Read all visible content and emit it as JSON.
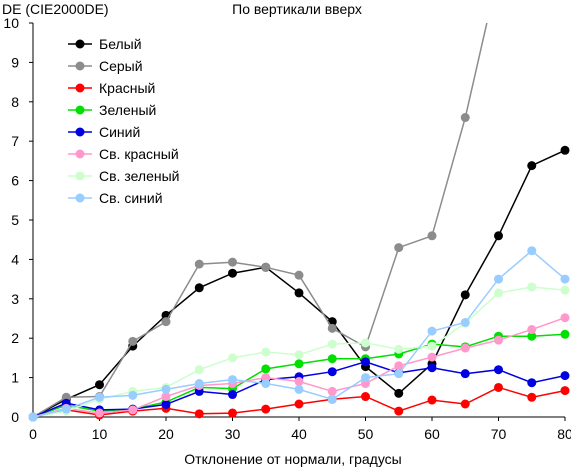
{
  "chart_data": {
    "type": "line",
    "title": "По вертикали вверх",
    "ylabel": "DE (CIE2000DE)",
    "xlabel": "Отклонение от нормали, градусы",
    "xlim": [
      0,
      80
    ],
    "ylim": [
      0,
      10
    ],
    "x_ticks": [
      "0",
      "10",
      "20",
      "30",
      "40",
      "50",
      "60",
      "70",
      "80"
    ],
    "y_ticks": [
      "0",
      "1",
      "2",
      "3",
      "4",
      "5",
      "6",
      "7",
      "8",
      "9",
      "10"
    ],
    "grid": false,
    "legend_position": "top-left",
    "x": [
      0,
      5,
      10,
      15,
      20,
      25,
      30,
      35,
      40,
      45,
      50,
      55,
      60,
      65,
      70,
      75,
      80
    ],
    "series": [
      {
        "name": "Белый",
        "color": "#000000",
        "values": [
          0,
          0.45,
          0.82,
          1.8,
          2.58,
          3.28,
          3.65,
          3.8,
          3.15,
          2.42,
          1.28,
          0.6,
          1.35,
          3.1,
          4.6,
          6.38,
          6.77
        ]
      },
      {
        "name": "Серый",
        "color": "#8c8c8c",
        "values": [
          0,
          0.5,
          0.52,
          1.92,
          2.42,
          3.88,
          3.93,
          3.8,
          3.6,
          2.25,
          1.78,
          4.3,
          4.6,
          7.6,
          11.3,
          null,
          null
        ]
      },
      {
        "name": "Красный",
        "color": "#ff0000",
        "values": [
          0,
          0.18,
          0.05,
          0.15,
          0.22,
          0.08,
          0.1,
          0.2,
          0.33,
          0.45,
          0.52,
          0.15,
          0.43,
          0.33,
          0.75,
          0.5,
          0.67
        ]
      },
      {
        "name": "Зеленый",
        "color": "#00e000",
        "values": [
          0,
          0.3,
          0.15,
          0.2,
          0.38,
          0.75,
          0.72,
          1.22,
          1.35,
          1.48,
          1.48,
          1.6,
          1.85,
          1.78,
          2.05,
          2.05,
          2.1
        ]
      },
      {
        "name": "Синий",
        "color": "#0000e0",
        "values": [
          0,
          0.35,
          0.18,
          0.2,
          0.32,
          0.65,
          0.57,
          0.95,
          1.02,
          1.15,
          1.4,
          1.12,
          1.25,
          1.1,
          1.2,
          0.87,
          1.05
        ]
      },
      {
        "name": "Св. красный",
        "color": "#ff99cc",
        "values": [
          0,
          0.22,
          0.1,
          0.18,
          0.52,
          0.8,
          0.85,
          1.0,
          0.9,
          0.65,
          0.85,
          1.3,
          1.52,
          1.75,
          1.95,
          2.22,
          2.52
        ]
      },
      {
        "name": "Св. зеленый",
        "color": "#ccffcc",
        "values": [
          0,
          0.15,
          0.45,
          0.65,
          0.75,
          1.2,
          1.5,
          1.65,
          1.58,
          1.85,
          1.88,
          1.72,
          1.8,
          2.38,
          3.15,
          3.3,
          3.22
        ]
      },
      {
        "name": "Св. синий",
        "color": "#99ccff",
        "values": [
          0,
          0.2,
          0.5,
          0.55,
          0.7,
          0.85,
          0.95,
          0.85,
          0.7,
          0.45,
          1.0,
          1.1,
          2.18,
          2.4,
          3.5,
          4.22,
          3.5
        ]
      }
    ]
  }
}
